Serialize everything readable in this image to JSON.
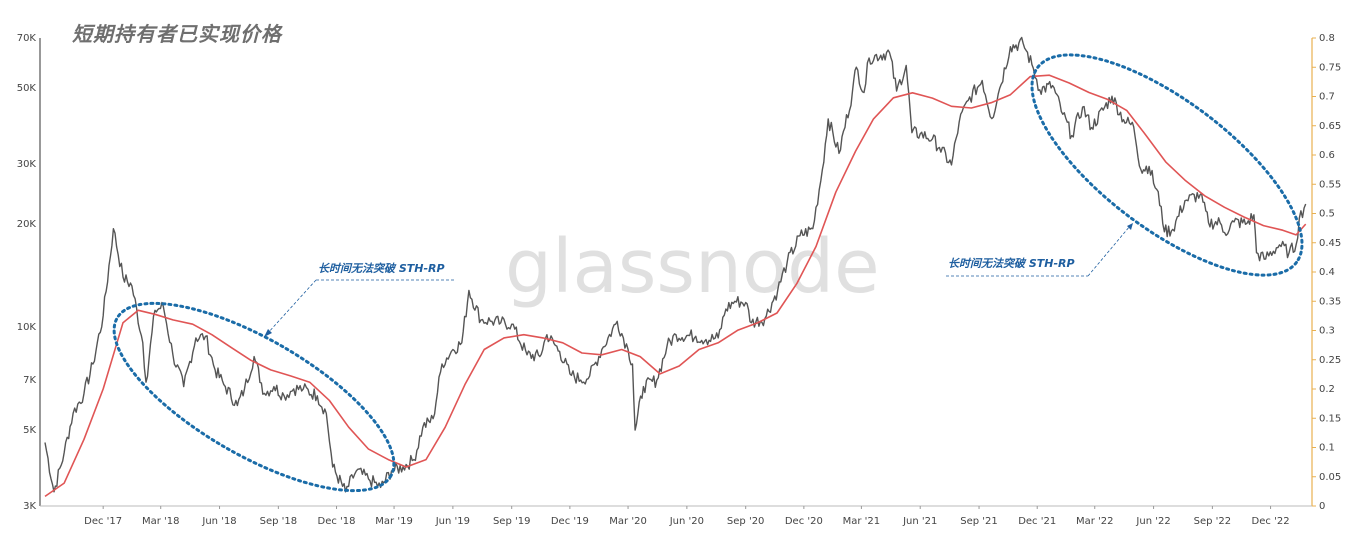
{
  "chart_data": {
    "type": "line",
    "title": "短期持有者已实现价格",
    "watermark": "glassnode",
    "x_ticks": [
      "Dec '17",
      "Mar '18",
      "Jun '18",
      "Sep '18",
      "Dec '18",
      "Mar '19",
      "Jun '19",
      "Sep '19",
      "Dec '19",
      "Mar '20",
      "Jun '20",
      "Sep '20",
      "Dec '20",
      "Mar '21",
      "Jun '21",
      "Sep '21",
      "Dec '21",
      "Mar '22",
      "Jun '22",
      "Sep '22",
      "Dec '22"
    ],
    "y_left": {
      "scale": "log",
      "ticks": [
        "3K",
        "5K",
        "7K",
        "10K",
        "20K",
        "30K",
        "50K",
        "70K"
      ],
      "values": [
        3000,
        5000,
        7000,
        10000,
        20000,
        30000,
        50000,
        70000
      ],
      "range": [
        3000,
        70000
      ]
    },
    "y_right": {
      "ticks": [
        "0",
        "0.05",
        "0.1",
        "0.15",
        "0.2",
        "0.25",
        "0.3",
        "0.35",
        "0.4",
        "0.45",
        "0.5",
        "0.55",
        "0.6",
        "0.65",
        "0.7",
        "0.75",
        "0.8"
      ],
      "range": [
        0,
        0.8
      ]
    },
    "series": [
      {
        "color": "#555555",
        "points": [
          [
            "2017-09-01",
            4600
          ],
          [
            "2017-09-15",
            3300
          ],
          [
            "2017-10-01",
            4300
          ],
          [
            "2017-10-15",
            5600
          ],
          [
            "2017-11-01",
            6400
          ],
          [
            "2017-11-15",
            7800
          ],
          [
            "2017-12-01",
            10800
          ],
          [
            "2017-12-17",
            19400
          ],
          [
            "2018-01-01",
            14000
          ],
          [
            "2018-01-15",
            13200
          ],
          [
            "2018-02-01",
            9000
          ],
          [
            "2018-02-06",
            6900
          ],
          [
            "2018-02-20",
            11200
          ],
          [
            "2018-03-05",
            11500
          ],
          [
            "2018-03-20",
            8300
          ],
          [
            "2018-04-06",
            6700
          ],
          [
            "2018-04-25",
            9300
          ],
          [
            "2018-05-10",
            9400
          ],
          [
            "2018-05-25",
            7500
          ],
          [
            "2018-06-10",
            6700
          ],
          [
            "2018-06-29",
            5900
          ],
          [
            "2018-07-10",
            6600
          ],
          [
            "2018-07-25",
            8200
          ],
          [
            "2018-08-10",
            6400
          ],
          [
            "2018-08-25",
            6700
          ],
          [
            "2018-09-10",
            6300
          ],
          [
            "2018-09-25",
            6600
          ],
          [
            "2018-10-10",
            6600
          ],
          [
            "2018-11-01",
            6300
          ],
          [
            "2018-11-15",
            5600
          ],
          [
            "2018-11-25",
            3900
          ],
          [
            "2018-12-15",
            3300
          ],
          [
            "2019-01-01",
            3800
          ],
          [
            "2019-01-20",
            3600
          ],
          [
            "2019-02-08",
            3400
          ],
          [
            "2019-02-25",
            3800
          ],
          [
            "2019-03-15",
            3900
          ],
          [
            "2019-04-01",
            4100
          ],
          [
            "2019-04-15",
            5100
          ],
          [
            "2019-05-01",
            5400
          ],
          [
            "2019-05-15",
            7800
          ],
          [
            "2019-06-01",
            8600
          ],
          [
            "2019-06-15",
            9000
          ],
          [
            "2019-06-26",
            12800
          ],
          [
            "2019-07-15",
            10500
          ],
          [
            "2019-08-01",
            10400
          ],
          [
            "2019-08-15",
            10300
          ],
          [
            "2019-09-01",
            10200
          ],
          [
            "2019-09-25",
            8300
          ],
          [
            "2019-10-15",
            8200
          ],
          [
            "2019-10-26",
            9500
          ],
          [
            "2019-11-15",
            8500
          ],
          [
            "2019-12-01",
            7300
          ],
          [
            "2019-12-18",
            7000
          ],
          [
            "2020-01-01",
            7200
          ],
          [
            "2020-01-20",
            8600
          ],
          [
            "2020-02-13",
            10400
          ],
          [
            "2020-03-01",
            8600
          ],
          [
            "2020-03-08",
            7800
          ],
          [
            "2020-03-12",
            5000
          ],
          [
            "2020-03-25",
            6700
          ],
          [
            "2020-04-15",
            7000
          ],
          [
            "2020-05-01",
            8800
          ],
          [
            "2020-05-15",
            9500
          ],
          [
            "2020-06-15",
            9400
          ],
          [
            "2020-07-01",
            9200
          ],
          [
            "2020-07-20",
            9300
          ],
          [
            "2020-08-01",
            11300
          ],
          [
            "2020-08-15",
            11900
          ],
          [
            "2020-09-01",
            11800
          ],
          [
            "2020-09-10",
            10300
          ],
          [
            "2020-10-01",
            10600
          ],
          [
            "2020-10-21",
            12800
          ],
          [
            "2020-11-05",
            15500
          ],
          [
            "2020-11-25",
            18500
          ],
          [
            "2020-12-15",
            19400
          ],
          [
            "2020-12-30",
            28900
          ],
          [
            "2021-01-08",
            40600
          ],
          [
            "2021-01-25",
            32200
          ],
          [
            "2021-02-15",
            48700
          ],
          [
            "2021-02-21",
            57500
          ],
          [
            "2021-03-05",
            48500
          ],
          [
            "2021-03-13",
            61200
          ],
          [
            "2021-04-14",
            63500
          ],
          [
            "2021-04-25",
            49000
          ],
          [
            "2021-05-10",
            58200
          ],
          [
            "2021-05-19",
            37000
          ],
          [
            "2021-06-01",
            36700
          ],
          [
            "2021-06-20",
            35500
          ],
          [
            "2021-07-01",
            33500
          ],
          [
            "2021-07-20",
            29800
          ],
          [
            "2021-08-01",
            39800
          ],
          [
            "2021-08-15",
            46000
          ],
          [
            "2021-09-06",
            52600
          ],
          [
            "2021-09-21",
            40700
          ],
          [
            "2021-10-01",
            48000
          ],
          [
            "2021-10-20",
            66000
          ],
          [
            "2021-11-09",
            67600
          ],
          [
            "2021-11-25",
            57000
          ],
          [
            "2021-12-05",
            49400
          ],
          [
            "2021-12-25",
            50800
          ],
          [
            "2022-01-10",
            41900
          ],
          [
            "2022-01-24",
            36300
          ],
          [
            "2022-02-10",
            44000
          ],
          [
            "2022-02-24",
            38300
          ],
          [
            "2022-03-28",
            47300
          ],
          [
            "2022-04-15",
            40400
          ],
          [
            "2022-05-01",
            38500
          ],
          [
            "2022-05-12",
            28900
          ],
          [
            "2022-05-25",
            29500
          ],
          [
            "2022-06-13",
            22500
          ],
          [
            "2022-06-18",
            19000
          ],
          [
            "2022-07-01",
            19300
          ],
          [
            "2022-07-20",
            23400
          ],
          [
            "2022-08-13",
            24400
          ],
          [
            "2022-08-26",
            20200
          ],
          [
            "2022-09-13",
            20200
          ],
          [
            "2022-09-20",
            18900
          ],
          [
            "2022-10-05",
            20300
          ],
          [
            "2022-10-25",
            20100
          ],
          [
            "2022-11-05",
            21300
          ],
          [
            "2022-11-09",
            16500
          ],
          [
            "2022-11-21",
            15800
          ],
          [
            "2022-12-15",
            17400
          ],
          [
            "2022-12-30",
            16500
          ],
          [
            "2023-01-10",
            17400
          ],
          [
            "2023-01-15",
            20800
          ],
          [
            "2023-01-25",
            22900
          ]
        ]
      },
      {
        "color": "#e05555",
        "points": [
          [
            "2017-09-01",
            3200
          ],
          [
            "2017-10-01",
            3500
          ],
          [
            "2017-11-01",
            4700
          ],
          [
            "2017-12-01",
            6600
          ],
          [
            "2018-01-01",
            10300
          ],
          [
            "2018-01-25",
            11200
          ],
          [
            "2018-02-20",
            10900
          ],
          [
            "2018-03-20",
            10500
          ],
          [
            "2018-04-20",
            10200
          ],
          [
            "2018-05-20",
            9500
          ],
          [
            "2018-06-20",
            8700
          ],
          [
            "2018-07-20",
            8000
          ],
          [
            "2018-08-20",
            7500
          ],
          [
            "2018-09-20",
            7200
          ],
          [
            "2018-10-20",
            6900
          ],
          [
            "2018-11-20",
            6100
          ],
          [
            "2018-12-20",
            5100
          ],
          [
            "2019-01-20",
            4400
          ],
          [
            "2019-02-20",
            4100
          ],
          [
            "2019-03-20",
            3900
          ],
          [
            "2019-04-20",
            4100
          ],
          [
            "2019-05-20",
            5100
          ],
          [
            "2019-06-20",
            6800
          ],
          [
            "2019-07-20",
            8600
          ],
          [
            "2019-08-20",
            9300
          ],
          [
            "2019-09-20",
            9500
          ],
          [
            "2019-10-20",
            9300
          ],
          [
            "2019-11-20",
            9000
          ],
          [
            "2019-12-20",
            8400
          ],
          [
            "2020-01-20",
            8300
          ],
          [
            "2020-02-20",
            8600
          ],
          [
            "2020-03-20",
            8200
          ],
          [
            "2020-04-20",
            7300
          ],
          [
            "2020-05-20",
            7700
          ],
          [
            "2020-06-20",
            8600
          ],
          [
            "2020-07-20",
            9000
          ],
          [
            "2020-08-20",
            9800
          ],
          [
            "2020-09-20",
            10300
          ],
          [
            "2020-10-20",
            11000
          ],
          [
            "2020-11-20",
            13400
          ],
          [
            "2020-12-20",
            17200
          ],
          [
            "2021-01-20",
            24800
          ],
          [
            "2021-02-20",
            32700
          ],
          [
            "2021-03-20",
            40600
          ],
          [
            "2021-04-20",
            46800
          ],
          [
            "2021-05-20",
            48400
          ],
          [
            "2021-06-20",
            46700
          ],
          [
            "2021-07-20",
            44200
          ],
          [
            "2021-08-20",
            43700
          ],
          [
            "2021-09-20",
            45300
          ],
          [
            "2021-10-20",
            47800
          ],
          [
            "2021-11-20",
            54000
          ],
          [
            "2021-12-20",
            54500
          ],
          [
            "2022-01-20",
            51700
          ],
          [
            "2022-02-20",
            48500
          ],
          [
            "2022-03-20",
            46400
          ],
          [
            "2022-04-20",
            43000
          ],
          [
            "2022-05-20",
            36400
          ],
          [
            "2022-06-20",
            30400
          ],
          [
            "2022-07-20",
            26900
          ],
          [
            "2022-08-20",
            24200
          ],
          [
            "2022-09-20",
            22400
          ],
          [
            "2022-10-20",
            21000
          ],
          [
            "2022-11-20",
            19800
          ],
          [
            "2022-12-20",
            19200
          ],
          [
            "2023-01-10",
            18600
          ],
          [
            "2023-01-25",
            20000
          ]
        ]
      }
    ],
    "annotations": [
      {
        "text": "长时间无法突破 STH-RP"
      },
      {
        "text": "长时间无法突破 STH-RP"
      }
    ]
  }
}
